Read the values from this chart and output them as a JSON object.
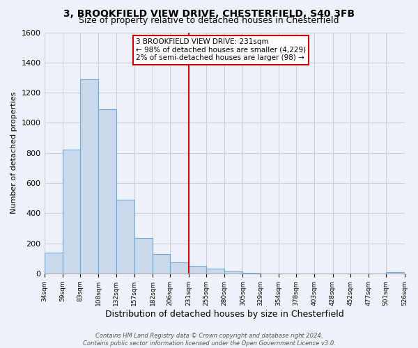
{
  "title": "3, BROOKFIELD VIEW DRIVE, CHESTERFIELD, S40 3FB",
  "subtitle": "Size of property relative to detached houses in Chesterfield",
  "xlabel": "Distribution of detached houses by size in Chesterfield",
  "ylabel": "Number of detached properties",
  "bar_edges": [
    34,
    59,
    83,
    108,
    132,
    157,
    182,
    206,
    231,
    255,
    280,
    305,
    329,
    354,
    378,
    403,
    428,
    452,
    477,
    501,
    526
  ],
  "bar_heights": [
    140,
    820,
    1290,
    1090,
    490,
    235,
    130,
    75,
    50,
    30,
    15,
    5,
    0,
    0,
    0,
    0,
    0,
    0,
    0,
    10
  ],
  "bar_color": "#c9d9ee",
  "bar_edge_color": "#6fa8d6",
  "vline_x": 231,
  "vline_color": "#cc0000",
  "ylim": [
    0,
    1600
  ],
  "yticks": [
    0,
    200,
    400,
    600,
    800,
    1000,
    1200,
    1400,
    1600
  ],
  "tick_labels": [
    "34sqm",
    "59sqm",
    "83sqm",
    "108sqm",
    "132sqm",
    "157sqm",
    "182sqm",
    "206sqm",
    "231sqm",
    "255sqm",
    "280sqm",
    "305sqm",
    "329sqm",
    "354sqm",
    "378sqm",
    "403sqm",
    "428sqm",
    "452sqm",
    "477sqm",
    "501sqm",
    "526sqm"
  ],
  "annotation_title": "3 BROOKFIELD VIEW DRIVE: 231sqm",
  "annotation_line1": "← 98% of detached houses are smaller (4,229)",
  "annotation_line2": "2% of semi-detached houses are larger (98) →",
  "annotation_box_color": "#cc0000",
  "footnote1": "Contains HM Land Registry data © Crown copyright and database right 2024.",
  "footnote2": "Contains public sector information licensed under the Open Government Licence v3.0.",
  "bg_color": "#eef2f8",
  "plot_bg_color": "#eef2f8",
  "title_fontsize": 10,
  "subtitle_fontsize": 9,
  "xlabel_fontsize": 9,
  "ylabel_fontsize": 8,
  "grid_color": "#c8d0dc",
  "footnote_fontsize": 6,
  "tick_fontsize": 6.5,
  "ytick_fontsize": 8
}
